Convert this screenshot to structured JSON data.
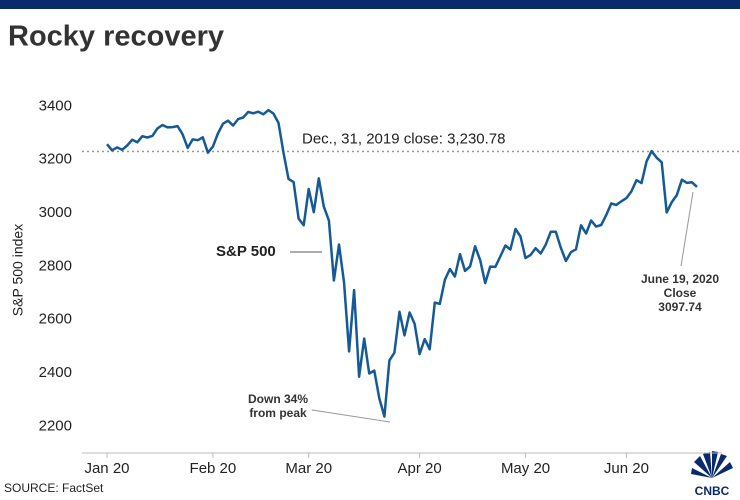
{
  "chart_data": {
    "type": "line",
    "title": "Rocky recovery",
    "y_label": "S&P 500 index",
    "source": "SOURCE: FactSet",
    "logo": "CNBC",
    "series_label": "S&P 500",
    "color": "#155a96",
    "categories": [
      "Jan 20",
      null,
      null,
      null,
      null,
      null,
      null,
      null,
      null,
      null,
      null,
      null,
      null,
      null,
      null,
      null,
      null,
      null,
      null,
      null,
      null,
      "Feb 20",
      null,
      null,
      null,
      null,
      null,
      null,
      null,
      null,
      null,
      null,
      null,
      null,
      null,
      null,
      null,
      null,
      null,
      null,
      "Mar 20",
      null,
      null,
      null,
      null,
      null,
      null,
      null,
      null,
      null,
      null,
      null,
      null,
      null,
      null,
      null,
      null,
      null,
      null,
      null,
      null,
      null,
      "Apr 20",
      null,
      null,
      null,
      null,
      null,
      null,
      null,
      null,
      null,
      null,
      null,
      null,
      null,
      null,
      null,
      null,
      null,
      null,
      null,
      null,
      "May 20",
      null,
      null,
      null,
      null,
      null,
      null,
      null,
      null,
      null,
      null,
      null,
      null,
      null,
      null,
      null,
      null,
      null,
      null,
      null,
      "Jun 20",
      null,
      null,
      null,
      null,
      null,
      null,
      null,
      null,
      null,
      null,
      null,
      null,
      null,
      null
    ],
    "values": [
      3258,
      3235,
      3246,
      3237,
      3253,
      3275,
      3265,
      3288,
      3283,
      3289,
      3317,
      3330,
      3321,
      3322,
      3326,
      3295,
      3244,
      3276,
      3273,
      3284,
      3226,
      3249,
      3298,
      3335,
      3346,
      3328,
      3352,
      3358,
      3379,
      3374,
      3380,
      3370,
      3386,
      3373,
      3338,
      3226,
      3128,
      3116,
      2979,
      2954,
      3090,
      3003,
      3130,
      3024,
      2972,
      2747,
      2882,
      2741,
      2481,
      2711,
      2386,
      2529,
      2398,
      2409,
      2305,
      2237,
      2447,
      2476,
      2630,
      2541,
      2627,
      2585,
      2471,
      2527,
      2489,
      2664,
      2659,
      2750,
      2790,
      2762,
      2846,
      2783,
      2800,
      2875,
      2823,
      2737,
      2799,
      2798,
      2837,
      2878,
      2863,
      2940,
      2912,
      2831,
      2843,
      2868,
      2848,
      2881,
      2930,
      2930,
      2870,
      2820,
      2853,
      2864,
      2954,
      2923,
      2972,
      2949,
      2955,
      2992,
      3036,
      3030,
      3044,
      3056,
      3081,
      3123,
      3112,
      3194,
      3232,
      3207,
      3190,
      3002,
      3041,
      3067,
      3125,
      3113,
      3115,
      3097.74
    ],
    "ylim": [
      2100,
      3480
    ],
    "yticks": [
      2200,
      2400,
      2600,
      2800,
      3000,
      3200,
      3400
    ],
    "reference": {
      "value": 3230.78,
      "label": "Dec., 31, 2019 close:  3,230.78"
    },
    "annotations": [
      {
        "lines": [
          "Down 34%",
          "from peak"
        ]
      },
      {
        "lines": [
          "June 19, 2020",
          "Close",
          "3097.74"
        ]
      }
    ]
  }
}
